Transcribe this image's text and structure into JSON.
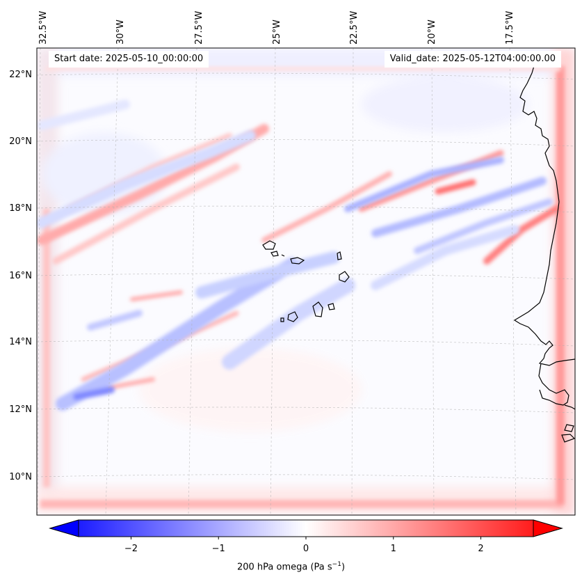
{
  "header": {
    "start_date": "Start date: 2025-05-10_00:00:00",
    "valid_date": "Valid_date: 2025-05-12T04:00:00.00"
  },
  "map": {
    "variable": "200 hPa omega",
    "lon_labels": [
      "32.5°W",
      "30°W",
      "27.5°W",
      "25°W",
      "22.5°W",
      "20°W",
      "17.5°W"
    ],
    "lat_labels": [
      "22°N",
      "20°N",
      "18°N",
      "16°N",
      "14°N",
      "12°N",
      "10°N"
    ],
    "gridlines": true,
    "coastlines": true,
    "colors": {
      "negative": "#0000ff",
      "neutral": "#ffffff",
      "positive": "#ff0000",
      "coast": "#000000",
      "grid": "#aaaaaa"
    }
  },
  "colorbar": {
    "ticks": [
      "−2",
      "−1",
      "0",
      "1",
      "2"
    ],
    "tick_values": [
      -2,
      -1,
      0,
      1,
      2
    ],
    "range": [
      -2.6,
      2.6
    ],
    "extend": "both",
    "label_main": "200 hPa omega (Pa s",
    "label_exp": "−1",
    "label_end": ")"
  }
}
